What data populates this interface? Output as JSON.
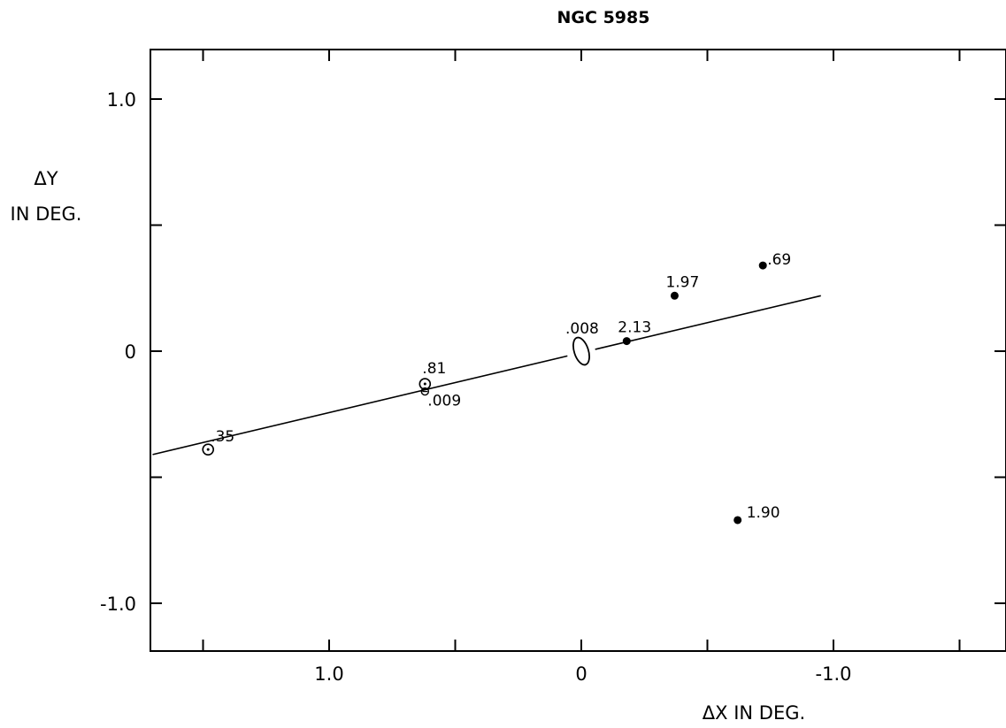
{
  "chart_data": {
    "type": "scatter",
    "title": "NGC 5985",
    "xlabel": "ΔX IN DEG.",
    "ylabel_lines": [
      "ΔY",
      "IN DEG."
    ],
    "x_reversed": true,
    "xlim": [
      1.7,
      -1.7
    ],
    "ylim": [
      -1.2,
      1.2
    ],
    "x_ticks": [
      {
        "value": 1.0,
        "label": "1.0"
      },
      {
        "value": 0,
        "label": "0"
      },
      {
        "value": -1.0,
        "label": "-1.0"
      }
    ],
    "y_ticks": [
      {
        "value": 1.0,
        "label": "1.0"
      },
      {
        "value": 0,
        "label": "0"
      },
      {
        "value": -1.0,
        "label": "-1.0"
      }
    ],
    "minor_tick_step": 0.5,
    "grid": false,
    "line": {
      "points": [
        [
          1.7,
          -0.41
        ],
        [
          -0.95,
          0.22
        ]
      ]
    },
    "galaxy": {
      "x": 0.0,
      "y": 0.0,
      "label": ".008"
    },
    "points": [
      {
        "x": 1.48,
        "y": -0.39,
        "label": ".35",
        "marker": "open"
      },
      {
        "x": 0.62,
        "y": -0.13,
        "label": ".81",
        "marker": "open"
      },
      {
        "x": 0.62,
        "y": -0.16,
        "label": ".009",
        "marker": "open-small"
      },
      {
        "x": -0.18,
        "y": 0.04,
        "label": "2.13",
        "marker": "filled"
      },
      {
        "x": -0.37,
        "y": 0.22,
        "label": "1.97",
        "marker": "filled"
      },
      {
        "x": -0.72,
        "y": 0.34,
        "label": ".69",
        "marker": "filled"
      },
      {
        "x": -0.62,
        "y": -0.67,
        "label": "1.90",
        "marker": "filled"
      }
    ]
  }
}
